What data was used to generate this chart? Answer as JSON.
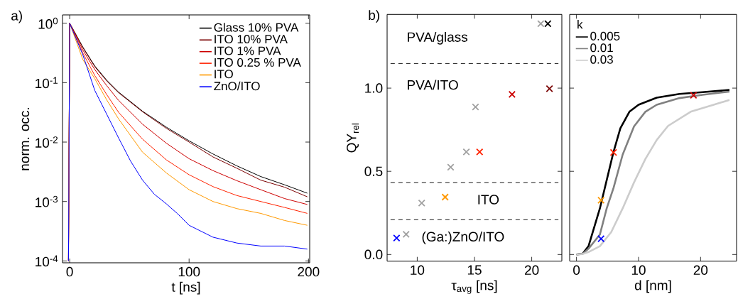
{
  "chart_data": [
    {
      "type": "line",
      "title": "a)",
      "xlabel": "t [ns]",
      "ylabel": "norm. occ.",
      "log": "y",
      "legend": "top right",
      "marker": "none",
      "line_style": "solid",
      "xlim": [
        -6,
        201
      ],
      "ylim": [
        9.3e-05,
        1.38
      ],
      "xticks": [
        0,
        100,
        200
      ],
      "yticks": [
        {
          "value": 0.0001,
          "label": "10$^{-4}$"
        },
        {
          "value": 0.001,
          "label": "10$^{-3}$"
        },
        {
          "value": 0.01,
          "label": "10$^{-2}$"
        },
        {
          "value": 0.1,
          "label": "10$^{-1}$"
        },
        {
          "value": 1,
          "label": "10$^{0}$"
        }
      ],
      "x": [
        -1,
        0,
        11,
        21,
        31,
        41,
        61,
        81,
        100,
        120,
        140,
        160,
        180,
        199
      ],
      "series": [
        {
          "name": "Glass 10% PVA",
          "color": "#000000",
          "values": [
            0.0001,
            1,
            0.398,
            0.191,
            0.11,
            0.0692,
            0.0331,
            0.0178,
            0.0105,
            0.00631,
            0.00398,
            0.00263,
            0.00191,
            0.00138
          ]
        },
        {
          "name": "ITO 10% PVA",
          "color": "#7a0000",
          "values": [
            0.0001,
            1,
            0.389,
            0.186,
            0.107,
            0.0676,
            0.0324,
            0.017,
            0.01,
            0.00562,
            0.00363,
            0.00229,
            0.00174,
            0.0012
          ]
        },
        {
          "name": "ITO 1% PVA",
          "color": "#cc0000",
          "values": [
            0.0001,
            1,
            0.355,
            0.166,
            0.0891,
            0.0501,
            0.02,
            0.00955,
            0.00525,
            0.00331,
            0.00224,
            0.00158,
            0.00112,
            0.000891
          ]
        },
        {
          "name": "ITO 0.25 % PVA",
          "color": "#ff2200",
          "values": [
            0.0001,
            1,
            0.316,
            0.132,
            0.0631,
            0.0316,
            0.0112,
            0.00501,
            0.00282,
            0.00178,
            0.00126,
            0.001,
            0.000794,
            0.000631
          ]
        },
        {
          "name": "ITO",
          "color": "#ff9900",
          "values": [
            0.0001,
            1,
            0.245,
            0.117,
            0.0513,
            0.0245,
            0.00676,
            0.00302,
            0.00158,
            0.001,
            0.000759,
            0.000631,
            0.000479,
            0.000398
          ]
        },
        {
          "name": "ZnO/ITO",
          "color": "#0000ff",
          "x": [
            -1,
            0,
            11,
            21,
            31,
            41,
            51,
            61,
            71,
            81,
            90,
            100,
            120,
            140,
            160,
            180,
            199
          ],
          "values": [
            0.0001,
            1,
            0.295,
            0.0741,
            0.0295,
            0.0117,
            0.00479,
            0.00229,
            0.00132,
            0.000912,
            0.000631,
            0.000398,
            0.000251,
            0.0002,
            0.000178,
            0.000178,
            0.000158
          ]
        }
      ]
    },
    {
      "type": "scatter",
      "title": "b)",
      "xlabel": "τ$_{avg}$ [ns]",
      "ylabel": "QY$_{rel}$",
      "marker": "cross",
      "xlim": [
        7.37,
        22.63
      ],
      "ylim": [
        -0.04,
        1.443
      ],
      "xticks": [
        10,
        15,
        20
      ],
      "yticks": [
        {
          "value": 0,
          "label": "0.0"
        },
        {
          "value": 0.5,
          "label": "0.5"
        },
        {
          "value": 1,
          "label": "1.0"
        }
      ],
      "x": [
        8.2,
        9.03,
        10.39,
        12.44,
        12.92,
        14.29,
        15.09,
        15.45,
        18.28,
        20.79,
        21.41,
        21.55
      ],
      "values": [
        0.099,
        0.121,
        0.309,
        0.345,
        0.525,
        0.617,
        0.887,
        0.617,
        0.962,
        1.387,
        1.387,
        0.997
      ],
      "colors": [
        "#0000ff",
        "#a0a0a0",
        "#a0a0a0",
        "#ff9900",
        "#a0a0a0",
        "#a0a0a0",
        "#a0a0a0",
        "#ff2200",
        "#cc0000",
        "#a0a0a0",
        "#000000",
        "#7a0000"
      ],
      "ref_lines": [
        {
          "axis": "y",
          "value": 1.148,
          "color": "#000000",
          "line_style": "dashed"
        },
        {
          "axis": "y",
          "value": 0.433,
          "color": "#000000",
          "line_style": "dashed"
        },
        {
          "axis": "y",
          "value": 0.209,
          "color": "#000000",
          "line_style": "dashed"
        }
      ],
      "annotations": [
        "PVA/glass",
        "PVA/ITO",
        "ITO",
        "(Ga:)ZnO/ITO"
      ]
    },
    {
      "type": "line",
      "xlabel": "d [nm]",
      "legend_title": "k",
      "legend": "top left",
      "tick_labels": "x",
      "xlim": [
        -1.1,
        25.8
      ],
      "ylim": [
        -0.04,
        1.443
      ],
      "xticks": [
        0,
        10,
        20
      ],
      "yticks": [
        {
          "value": 0,
          "label": null
        },
        {
          "value": 0.5,
          "label": null
        },
        {
          "value": 1,
          "label": null
        }
      ],
      "series": [
        {
          "name": "0.005",
          "color": "#000000",
          "marker": "none",
          "x": [
            0,
            1,
            1.94,
            3.77,
            4.87,
            5.97,
            7.07,
            8.53,
            10,
            12.93,
            16.6,
            20.3,
            24.65
          ],
          "values": [
            0,
            0.005,
            0.05,
            0.277,
            0.447,
            0.617,
            0.759,
            0.858,
            0.9,
            0.943,
            0.965,
            0.976,
            0.989
          ]
        },
        {
          "name": "0.01",
          "color": "#808080",
          "marker": "none",
          "x": [
            0,
            1,
            1.94,
            3.77,
            4.87,
            5.97,
            7.44,
            9.27,
            11.1,
            12.93,
            16.6,
            20.3,
            24.65
          ],
          "values": [
            0,
            0.004,
            0.035,
            0.12,
            0.277,
            0.4,
            0.6,
            0.77,
            0.858,
            0.9,
            0.94,
            0.96,
            0.979
          ]
        },
        {
          "name": "0.03",
          "color": "#cccccc",
          "marker": "none",
          "x": [
            0,
            1,
            1.94,
            3.77,
            5.6,
            7.44,
            9.27,
            11.1,
            12.93,
            14.76,
            18.4,
            22.1,
            24.65
          ],
          "values": [
            0,
            0.003,
            0.015,
            0.05,
            0.135,
            0.277,
            0.433,
            0.574,
            0.688,
            0.773,
            0.858,
            0.9,
            0.929
          ]
        },
        {
          "type": "scatter",
          "marker": "cross",
          "x": [
            3.96,
            3.96,
            5.97,
            18.86
          ],
          "values": [
            0.095,
            0.326,
            0.613,
            0.957
          ],
          "colors": [
            "#0000ff",
            "#ff9900",
            "#ff2200",
            "#cc0000"
          ]
        }
      ]
    }
  ]
}
